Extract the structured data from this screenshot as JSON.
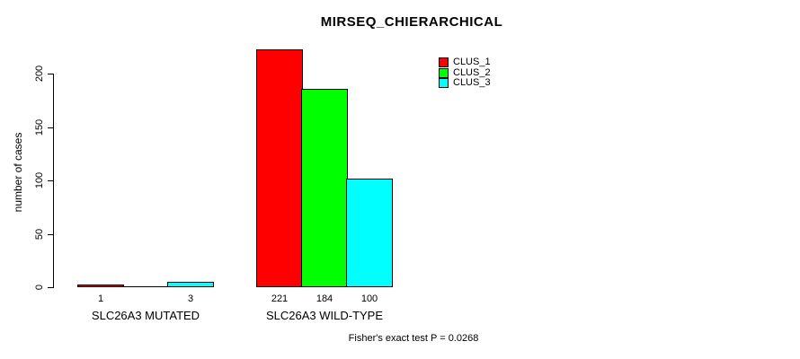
{
  "chart_data": {
    "type": "bar",
    "title": "MIRSEQ_CHIERARCHICAL",
    "xlabel": "",
    "ylabel": "number of cases",
    "categories": [
      "SLC26A3 MUTATED",
      "SLC26A3 WILD-TYPE"
    ],
    "series": [
      {
        "name": "CLUS_1",
        "color": "#FF0000",
        "values": [
          1,
          221
        ]
      },
      {
        "name": "CLUS_2",
        "color": "#00FF00",
        "values": [
          0,
          184
        ]
      },
      {
        "name": "CLUS_3",
        "color": "#00FFFF",
        "values": [
          3,
          100
        ]
      }
    ],
    "bar_value_labels": [
      [
        "1",
        "",
        "3"
      ],
      [
        "221",
        "184",
        "100"
      ]
    ],
    "y_ticks": [
      0,
      50,
      100,
      150,
      200
    ],
    "ylim": [
      0,
      230
    ],
    "grid": false,
    "legend_position": "top-right",
    "legend_entries": [
      "CLUS_1",
      "CLUS_2",
      "CLUS_3"
    ],
    "annotation": "Fisher's exact test P = 0.0268"
  }
}
